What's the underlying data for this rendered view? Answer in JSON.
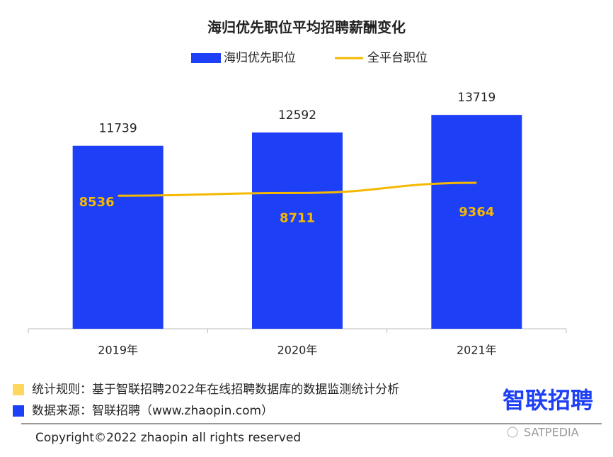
{
  "chart_data": {
    "type": "bar",
    "title": "海归优先职位平均招聘薪酬变化",
    "categories": [
      "2019年",
      "2020年",
      "2021年"
    ],
    "series": [
      {
        "name": "海归优先职位",
        "type": "bar",
        "color": "#1d3ff5",
        "values": [
          11739,
          12592,
          13719
        ]
      },
      {
        "name": "全平台职位",
        "type": "line",
        "color": "#f5b800",
        "values": [
          8536,
          8711,
          9364
        ]
      }
    ],
    "ylim": [
      0,
      16000
    ],
    "legend": "top"
  },
  "footer": {
    "notes": [
      {
        "text": "统计规则：基于智联招聘2022年在线招聘数据库的数据监测统计分析",
        "color": "#ffd75e"
      },
      {
        "text": "数据来源：智联招聘（www.zhaopin.com）",
        "color": "#1d3ff5"
      }
    ],
    "logo": "智联招聘",
    "copyright": "Copyright©2022 zhaopin all rights reserved",
    "watermark": "SATPEDIA"
  }
}
